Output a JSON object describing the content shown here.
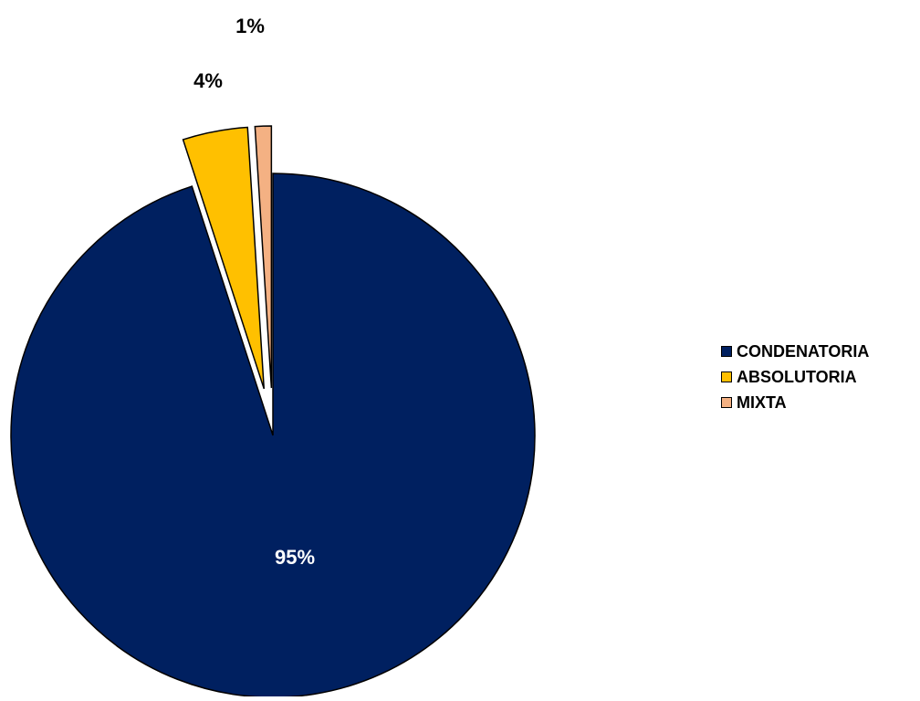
{
  "chart_data": {
    "type": "pie",
    "title": "",
    "categories": [
      "CONDENATORIA",
      "ABSOLUTORIA",
      "MIXTA"
    ],
    "values": [
      95,
      4,
      1
    ],
    "data_labels": [
      "95%",
      "4%",
      "1%"
    ],
    "colors": [
      "#002060",
      "#FFC000",
      "#F4B183"
    ],
    "label_colors": [
      "#FFFFFF",
      "#000000",
      "#000000"
    ],
    "exploded": [
      false,
      true,
      true
    ],
    "legend_position": "right"
  }
}
